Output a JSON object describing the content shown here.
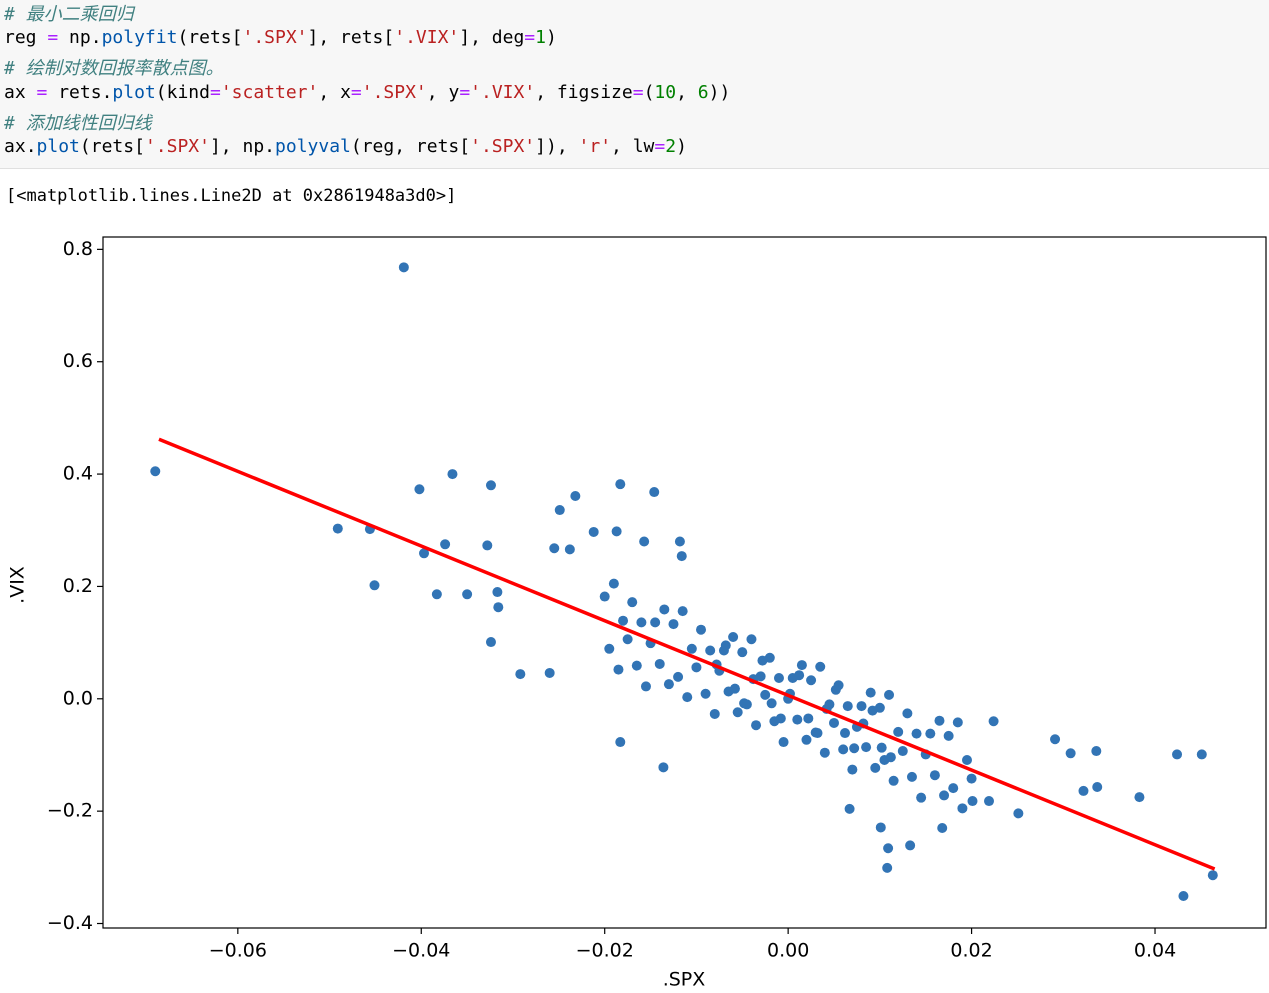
{
  "code": {
    "lines": [
      "# 最小二乘回归",
      "reg = np.polyfit(rets['.SPX'], rets['.VIX'], deg=1)",
      "# 绘制对数回报率散点图。",
      "ax = rets.plot(kind='scatter', x='.SPX', y='.VIX', figsize=(10, 6))",
      "# 添加线性回归线",
      "ax.plot(rets['.SPX'], np.polyval(reg, rets['.SPX']), 'r', lw=2)"
    ]
  },
  "output": {
    "text": "[<matplotlib.lines.Line2D at 0x2861948a3d0>]"
  },
  "chart_data": {
    "type": "scatter",
    "x_label": ".SPX",
    "y_label": ".VIX",
    "xlim": [
      -0.0747,
      0.0521
    ],
    "ylim": [
      -0.408,
      0.822
    ],
    "xticks": [
      {
        "value": -0.06,
        "label": "−0.06"
      },
      {
        "value": -0.04,
        "label": "−0.04"
      },
      {
        "value": -0.02,
        "label": "−0.02"
      },
      {
        "value": 0,
        "label": "0.00"
      },
      0.02,
      0.04
    ],
    "yticks": [
      {
        "value": -0.4,
        "label": "−0.4"
      },
      {
        "value": -0.2,
        "label": "−0.2"
      },
      {
        "value": 0,
        "label": "0.0"
      },
      0.2,
      0.4,
      0.6,
      0.8
    ],
    "grid": false,
    "series": [
      {
        "kind": "scatter",
        "color": "#3274b5",
        "x": [
          -0.0419,
          -0.069,
          -0.0491,
          -0.0456,
          -0.0451,
          -0.0402,
          -0.0366,
          -0.0324,
          -0.0397,
          -0.0374,
          -0.0328,
          -0.0383,
          -0.035,
          -0.0317,
          -0.0316,
          -0.0324,
          -0.0292,
          -0.026,
          0.0424,
          0.0451,
          0.0431,
          0.0463,
          0.0383,
          0.0336,
          0.0337,
          0.0322,
          0.0308,
          0.0291,
          0.0251,
          0.0108,
          0.0109,
          0.0101,
          0.0133,
          0.0067,
          -0.0183,
          -0.0136,
          -0.0183,
          -0.0146,
          -0.0232,
          -0.0249,
          -0.0212,
          -0.0187,
          -0.0157,
          -0.0118,
          -0.0116,
          -0.0255,
          -0.0238,
          0.0168,
          0.0201,
          0.0219,
          0.0224,
          -0.02,
          -0.0195,
          -0.019,
          -0.0185,
          -0.018,
          -0.0175,
          -0.017,
          -0.0165,
          -0.016,
          -0.0155,
          -0.015,
          -0.0145,
          -0.014,
          -0.0135,
          -0.013,
          -0.0125,
          -0.012,
          -0.0115,
          -0.011,
          -0.0105,
          -0.01,
          -0.0095,
          -0.009,
          -0.0085,
          -0.008,
          -0.0075,
          -0.007,
          -0.0065,
          -0.006,
          -0.0055,
          -0.005,
          -0.0045,
          -0.004,
          -0.0035,
          -0.003,
          -0.0025,
          -0.002,
          -0.0015,
          -0.001,
          -0.0005,
          0,
          0.0005,
          0.001,
          0.0015,
          0.002,
          0.0025,
          0.003,
          0.0035,
          0.004,
          0.0045,
          0.005,
          0.0055,
          0.006,
          0.0065,
          0.007,
          0.0075,
          0.008,
          0.0085,
          0.009,
          0.0095,
          0.01,
          0.0105,
          0.011,
          0.0115,
          0.012,
          0.0125,
          0.013,
          0.0135,
          0.014,
          0.0145,
          0.015,
          0.0155,
          0.016,
          0.0165,
          0.017,
          0.0175,
          0.018,
          0.0185,
          0.019,
          0.0195,
          0.02,
          -0.0078,
          -0.0058,
          -0.0038,
          -0.0018,
          0.0002,
          0.0022,
          0.0042,
          0.0062,
          0.0082,
          0.0102,
          -0.0068,
          -0.0048,
          -0.0028,
          -0.0008,
          0.0012,
          0.0032,
          0.0052,
          0.0072,
          0.0092,
          0.0112
        ],
        "y": [
          0.768,
          0.405,
          0.303,
          0.302,
          0.202,
          0.373,
          0.4,
          0.38,
          0.259,
          0.275,
          0.273,
          0.186,
          0.186,
          0.19,
          0.163,
          0.101,
          0.044,
          0.046,
          -0.099,
          -0.099,
          -0.351,
          -0.314,
          -0.175,
          -0.093,
          -0.157,
          -0.164,
          -0.097,
          -0.072,
          -0.204,
          -0.301,
          -0.266,
          -0.229,
          -0.261,
          -0.196,
          -0.077,
          -0.122,
          0.382,
          0.368,
          0.361,
          0.336,
          0.297,
          0.298,
          0.28,
          0.28,
          0.254,
          0.268,
          0.266,
          -0.23,
          -0.182,
          -0.182,
          -0.04,
          0.182,
          0.089,
          0.205,
          0.052,
          0.139,
          0.106,
          0.172,
          0.059,
          0.136,
          0.022,
          0.099,
          0.136,
          0.062,
          0.159,
          0.026,
          0.133,
          0.039,
          0.156,
          0.003,
          0.089,
          0.056,
          0.123,
          0.009,
          0.086,
          -0.027,
          0.05,
          0.086,
          0.013,
          0.11,
          -0.024,
          0.083,
          -0.01,
          0.106,
          -0.047,
          0.04,
          0.007,
          0.073,
          -0.04,
          0.037,
          -0.077,
          0,
          0.037,
          -0.037,
          0.06,
          -0.073,
          0.033,
          -0.06,
          0.057,
          -0.096,
          -0.01,
          -0.043,
          0.024,
          -0.09,
          -0.013,
          -0.126,
          -0.05,
          -0.013,
          -0.086,
          0.011,
          -0.123,
          -0.016,
          -0.109,
          0.007,
          -0.146,
          -0.059,
          -0.093,
          -0.026,
          -0.139,
          -0.062,
          -0.176,
          -0.099,
          -0.062,
          -0.136,
          -0.039,
          -0.172,
          -0.066,
          -0.159,
          -0.042,
          -0.195,
          -0.109,
          -0.142,
          0.061,
          0.018,
          0.035,
          -0.008,
          0.009,
          -0.035,
          -0.018,
          -0.061,
          -0.044,
          -0.087,
          0.095,
          -0.008,
          0.068,
          -0.035,
          0.042,
          -0.061,
          0.016,
          -0.088,
          -0.021,
          -0.104
        ]
      },
      {
        "kind": "line",
        "color": "#ff0000",
        "x": [
          -0.0686,
          0.0465
        ],
        "y": [
          0.462,
          -0.303
        ]
      }
    ]
  }
}
